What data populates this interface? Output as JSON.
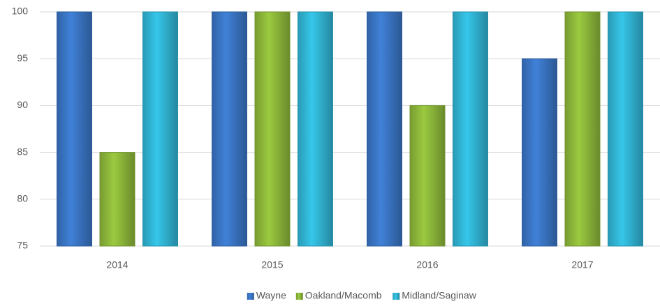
{
  "chart_data": {
    "type": "bar",
    "categories": [
      "2014",
      "2015",
      "2016",
      "2017"
    ],
    "series": [
      {
        "name": "Wayne",
        "color": "#3a75c4",
        "values": [
          100,
          100,
          100,
          95
        ]
      },
      {
        "name": "Oakland/Macomb",
        "color": "#8db83a",
        "values": [
          85,
          100,
          90,
          100
        ]
      },
      {
        "name": "Midland/Saginaw",
        "color": "#31b5d5",
        "values": [
          100,
          100,
          100,
          100
        ]
      }
    ],
    "ylim": [
      75,
      100
    ],
    "yticks": [
      75,
      80,
      85,
      90,
      95,
      100
    ],
    "grid": true,
    "legend": "bottom"
  }
}
